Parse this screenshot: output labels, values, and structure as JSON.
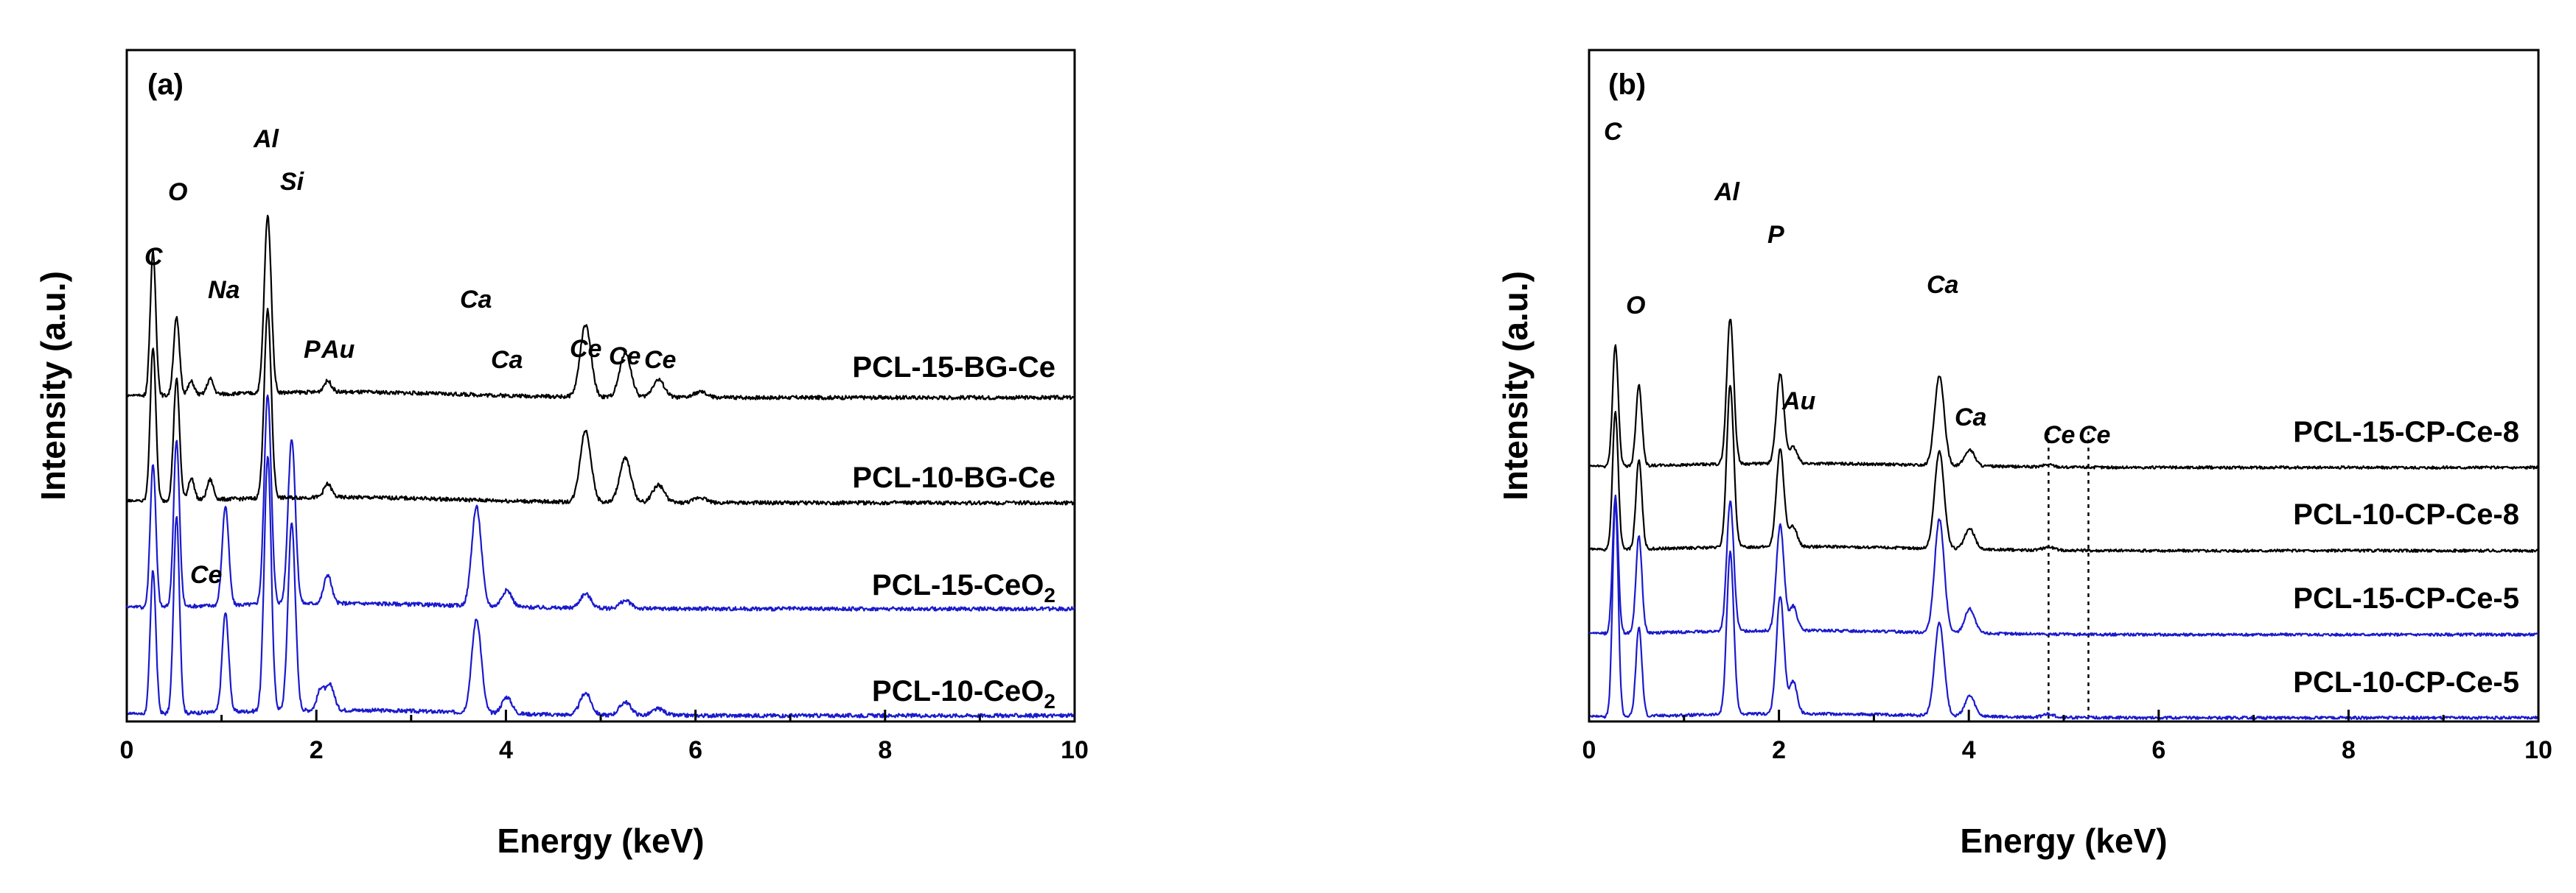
{
  "chart_data": [
    {
      "type": "line",
      "panel": "(a)",
      "xlabel": "Energy (keV)",
      "ylabel": "Intensity (a.u.)",
      "xlim": [
        0,
        10
      ],
      "xticks": [
        "0",
        "2",
        "4",
        "6",
        "8",
        "10"
      ],
      "series": [
        {
          "name": "PCL-15-BG-Ce",
          "label_main": "PCL-15-BG-Ce",
          "label_sub": "",
          "color": "#1a1acc",
          "offset": 3,
          "peaks": [
            [
              0.277,
              1.3
            ],
            [
              0.525,
              1.78
            ],
            [
              1.041,
              0.9
            ],
            [
              1.487,
              2.3
            ],
            [
              1.74,
              1.7
            ],
            [
              2.05,
              0.2
            ],
            [
              2.15,
              0.22
            ],
            [
              3.69,
              0.85
            ],
            [
              4.01,
              0.15
            ],
            [
              4.84,
              0.2
            ],
            [
              5.26,
              0.12
            ],
            [
              5.61,
              0.06
            ]
          ]
        },
        {
          "name": "PCL-10-BG-Ce",
          "label_main": "PCL-10-BG-Ce",
          "label_sub": "",
          "color": "#1a1acc",
          "offset": 2,
          "peaks": [
            [
              0.277,
              1.3
            ],
            [
              0.525,
              1.5
            ],
            [
              1.041,
              0.9
            ],
            [
              1.487,
              1.9
            ],
            [
              1.74,
              1.5
            ],
            [
              2.12,
              0.26
            ],
            [
              3.69,
              0.9
            ],
            [
              4.01,
              0.15
            ],
            [
              4.84,
              0.13
            ],
            [
              5.26,
              0.07
            ]
          ]
        },
        {
          "name": "PCL-15-CeO2",
          "label_main": "PCL-15-CeO",
          "label_sub": "2",
          "color": "#000000",
          "offset": 1,
          "peaks": [
            [
              0.277,
              1.4
            ],
            [
              0.525,
              1.1
            ],
            [
              0.68,
              0.2
            ],
            [
              0.88,
              0.18
            ],
            [
              1.487,
              1.7
            ],
            [
              2.12,
              0.12
            ],
            [
              4.84,
              0.65
            ],
            [
              5.26,
              0.4
            ],
            [
              5.61,
              0.16
            ],
            [
              6.05,
              0.05
            ]
          ]
        },
        {
          "name": "PCL-10-CeO2",
          "label_main": "PCL-10-CeO",
          "label_sub": "2",
          "color": "#000000",
          "offset": 0,
          "peaks": [
            [
              0.277,
              1.3
            ],
            [
              0.525,
              0.7
            ],
            [
              0.68,
              0.12
            ],
            [
              0.88,
              0.14
            ],
            [
              1.487,
              1.6
            ],
            [
              2.12,
              0.1
            ],
            [
              4.84,
              0.65
            ],
            [
              5.26,
              0.4
            ],
            [
              5.61,
              0.16
            ],
            [
              6.05,
              0.05
            ]
          ]
        }
      ],
      "peak_labels": [
        {
          "text": "C",
          "x": 0.277
        },
        {
          "text": "O",
          "x": 0.525
        },
        {
          "text": "Na",
          "x": 1.041
        },
        {
          "text": "Al",
          "x": 1.487
        },
        {
          "text": "Si",
          "x": 1.74
        },
        {
          "text": "P",
          "x": 2.0
        },
        {
          "text": "Au",
          "x": 2.15
        },
        {
          "text": "Ca",
          "x": 3.69
        },
        {
          "text": "Ca",
          "x": 4.01
        },
        {
          "text": "Ce",
          "x": 4.84
        },
        {
          "text": "Ce",
          "x": 5.26
        },
        {
          "text": "Ce",
          "x": 5.61
        },
        {
          "text": "Ce",
          "x": 0.88
        }
      ]
    },
    {
      "type": "line",
      "panel": "(b)",
      "xlabel": "Energy (keV)",
      "ylabel": "Intensity (a.u.)",
      "xlim": [
        0,
        10
      ],
      "xticks": [
        "0",
        "2",
        "4",
        "6",
        "8",
        "10"
      ],
      "series": [
        {
          "name": "PCL-15-CP-Ce-8",
          "label_main": "PCL-15-CP-Ce-8",
          "label_sub": "",
          "color": "#1a1acc",
          "offset": 3,
          "peaks": [
            [
              0.277,
              2.65
            ],
            [
              0.525,
              1.1
            ],
            [
              1.487,
              2.0
            ],
            [
              2.013,
              1.45
            ],
            [
              2.15,
              0.4
            ],
            [
              3.69,
              1.15
            ],
            [
              4.01,
              0.25
            ],
            [
              4.84,
              0.04
            ]
          ]
        },
        {
          "name": "PCL-10-CP-Ce-8",
          "label_main": "PCL-10-CP-Ce-8",
          "label_sub": "",
          "color": "#1a1acc",
          "offset": 2,
          "peaks": [
            [
              0.277,
              1.7
            ],
            [
              0.525,
              1.2
            ],
            [
              1.487,
              1.6
            ],
            [
              2.013,
              1.3
            ],
            [
              2.15,
              0.3
            ],
            [
              3.69,
              1.4
            ],
            [
              4.01,
              0.3
            ]
          ]
        },
        {
          "name": "PCL-15-CP-Ce-5",
          "label_main": "PCL-15-CP-Ce-5",
          "label_sub": "",
          "color": "#000000",
          "offset": 1,
          "peaks": [
            [
              0.277,
              1.7
            ],
            [
              0.525,
              1.1
            ],
            [
              1.487,
              2.0
            ],
            [
              2.013,
              1.2
            ],
            [
              2.15,
              0.25
            ],
            [
              3.69,
              1.2
            ],
            [
              4.01,
              0.25
            ],
            [
              4.84,
              0.04
            ]
          ]
        },
        {
          "name": "PCL-10-CP-Ce-5",
          "label_main": "PCL-10-CP-Ce-5",
          "label_sub": "",
          "color": "#000000",
          "offset": 0,
          "peaks": [
            [
              0.277,
              1.5
            ],
            [
              0.525,
              1.0
            ],
            [
              1.487,
              1.8
            ],
            [
              2.013,
              1.1
            ],
            [
              2.15,
              0.2
            ],
            [
              3.69,
              1.1
            ],
            [
              4.01,
              0.2
            ],
            [
              4.84,
              0.03
            ]
          ]
        }
      ],
      "peak_labels": [
        {
          "text": "C",
          "x": 0.277
        },
        {
          "text": "O",
          "x": 0.525
        },
        {
          "text": "Al",
          "x": 1.487
        },
        {
          "text": "P",
          "x": 2.013
        },
        {
          "text": "Au",
          "x": 2.15
        },
        {
          "text": "Ca",
          "x": 3.69
        },
        {
          "text": "Ca",
          "x": 4.01
        },
        {
          "text": "Ce",
          "x": 4.84
        },
        {
          "text": "Ce",
          "x": 5.26
        }
      ],
      "reference_lines": [
        4.84,
        5.26
      ]
    }
  ]
}
